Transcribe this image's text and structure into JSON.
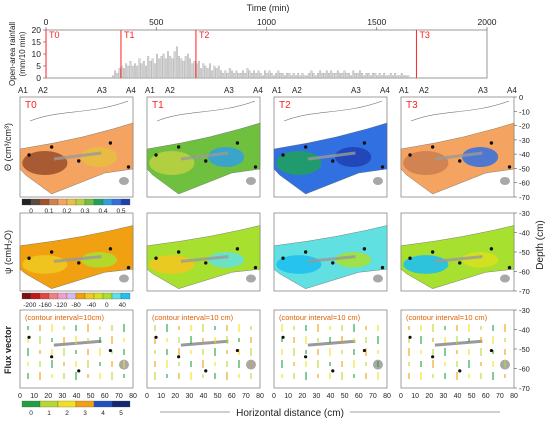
{
  "rainfall_panel": {
    "x_title": "Time (min)",
    "y_title_line1": "Open-area rainfall",
    "y_title_line2": "(mm/10 min)",
    "x_ticks": [
      "0",
      "500",
      "1000",
      "1500",
      "2000"
    ],
    "y_ticks": [
      "0",
      "5",
      "10",
      "15",
      "20"
    ]
  },
  "time_markers": [
    "T0",
    "T1",
    "T2",
    "T3"
  ],
  "panel_titles": [
    "T0",
    "T1",
    "T2",
    "T3"
  ],
  "sensor_labels": [
    "A1",
    "A2",
    "A3",
    "A4"
  ],
  "depth_axis": {
    "title": "Depth (cm)",
    "row1_ticks": [
      "0",
      "-10",
      "-20",
      "-30",
      "-40",
      "-50",
      "-60",
      "-70"
    ],
    "row2_ticks": [
      "-30",
      "-40",
      "-50",
      "-60",
      "-70"
    ],
    "row3_ticks": [
      "-30",
      "-40",
      "-50",
      "-60",
      "-70"
    ]
  },
  "row_labels": {
    "theta": "Θ (cm³/cm³)",
    "psi": "ψ (cmH₂O)",
    "flux": "Flux vector"
  },
  "theta_scale": {
    "ticks": [
      "0",
      "0.1",
      "0.2",
      "0.3",
      "0.4",
      "0.5"
    ],
    "colors": [
      "#222222",
      "#5a4a40",
      "#a0522d",
      "#cd8050",
      "#f4a460",
      "#e8c040",
      "#b8d040",
      "#70c040",
      "#20a060",
      "#30a0e0",
      "#3070e0",
      "#2040b0"
    ]
  },
  "psi_scale": {
    "ticks": [
      "-200",
      "-160",
      "-120",
      "-80",
      "-40",
      "0",
      "40"
    ],
    "colors": [
      "#7a1010",
      "#c01818",
      "#e04848",
      "#f08080",
      "#f0a0c8",
      "#d8b8e8",
      "#f0a010",
      "#f0c820",
      "#d8e020",
      "#a8e030",
      "#60e0e0",
      "#20c0f0"
    ]
  },
  "flux_scale": {
    "ticks": [
      "0",
      "1",
      "2",
      "3",
      "4",
      "5"
    ],
    "colors": [
      "#20a040",
      "#b8d830",
      "#f0e020",
      "#f0a010",
      "#2050c0",
      "#102870"
    ]
  },
  "contour_note": [
    "(contour interval=10cm)",
    "(contour interval=10 cm)",
    "(contour interval=10 cm)",
    "(contour interval=10 cm)"
  ],
  "x_axis": {
    "title": "Horizontal distance (cm)",
    "ticks": [
      "0",
      "10",
      "20",
      "30",
      "40",
      "50",
      "60",
      "70",
      "80"
    ]
  },
  "theme": {
    "marker_color": "#ff2020"
  },
  "chart_data": {
    "type": "bar",
    "title": "",
    "xlabel": "Time (min)",
    "ylabel": "Open-area rainfall (mm/10 min)",
    "xlim": [
      0,
      2000
    ],
    "ylim": [
      0,
      20
    ],
    "bin_width_min": 10,
    "rainfall": [
      [
        300,
        1
      ],
      [
        310,
        3
      ],
      [
        320,
        2
      ],
      [
        330,
        4
      ],
      [
        340,
        5
      ],
      [
        350,
        4
      ],
      [
        360,
        6
      ],
      [
        370,
        5
      ],
      [
        380,
        7
      ],
      [
        390,
        5
      ],
      [
        400,
        6
      ],
      [
        410,
        5
      ],
      [
        420,
        8
      ],
      [
        430,
        6
      ],
      [
        440,
        7
      ],
      [
        450,
        5
      ],
      [
        460,
        9
      ],
      [
        470,
        7
      ],
      [
        480,
        8
      ],
      [
        490,
        6
      ],
      [
        500,
        10
      ],
      [
        510,
        8
      ],
      [
        520,
        9
      ],
      [
        530,
        10
      ],
      [
        540,
        8
      ],
      [
        550,
        11
      ],
      [
        560,
        9
      ],
      [
        570,
        8
      ],
      [
        580,
        11
      ],
      [
        590,
        13
      ],
      [
        600,
        9
      ],
      [
        610,
        8
      ],
      [
        620,
        7
      ],
      [
        630,
        9
      ],
      [
        640,
        10
      ],
      [
        650,
        8
      ],
      [
        660,
        6
      ],
      [
        670,
        7
      ],
      [
        680,
        6
      ],
      [
        690,
        7
      ],
      [
        700,
        4
      ],
      [
        710,
        6
      ],
      [
        720,
        5
      ],
      [
        730,
        4
      ],
      [
        740,
        6
      ],
      [
        750,
        3
      ],
      [
        760,
        5
      ],
      [
        770,
        4
      ],
      [
        780,
        5
      ],
      [
        790,
        3
      ],
      [
        800,
        2
      ],
      [
        810,
        3
      ],
      [
        820,
        2
      ],
      [
        830,
        4
      ],
      [
        840,
        3
      ],
      [
        850,
        2
      ],
      [
        860,
        3
      ],
      [
        870,
        2
      ],
      [
        880,
        2
      ],
      [
        890,
        3
      ],
      [
        900,
        2
      ],
      [
        910,
        4
      ],
      [
        920,
        3
      ],
      [
        930,
        2
      ],
      [
        940,
        3
      ],
      [
        950,
        2
      ],
      [
        960,
        3
      ],
      [
        970,
        2
      ],
      [
        980,
        1
      ],
      [
        990,
        3
      ],
      [
        1000,
        2
      ],
      [
        1010,
        3
      ],
      [
        1020,
        2
      ],
      [
        1030,
        1
      ],
      [
        1040,
        2
      ],
      [
        1050,
        3
      ],
      [
        1060,
        2
      ],
      [
        1070,
        2
      ],
      [
        1080,
        1
      ],
      [
        1090,
        2
      ],
      [
        1100,
        2
      ],
      [
        1110,
        1
      ],
      [
        1120,
        2
      ],
      [
        1130,
        1
      ],
      [
        1140,
        2
      ],
      [
        1150,
        1
      ],
      [
        1160,
        2
      ],
      [
        1170,
        1
      ],
      [
        1180,
        1
      ],
      [
        1190,
        2
      ],
      [
        1200,
        3
      ],
      [
        1210,
        2
      ],
      [
        1220,
        1
      ],
      [
        1230,
        2
      ],
      [
        1240,
        3
      ],
      [
        1250,
        2
      ],
      [
        1260,
        2
      ],
      [
        1270,
        3
      ],
      [
        1280,
        2
      ],
      [
        1290,
        3
      ],
      [
        1300,
        2
      ],
      [
        1310,
        2
      ],
      [
        1320,
        3
      ],
      [
        1330,
        2
      ],
      [
        1340,
        2
      ],
      [
        1350,
        3
      ],
      [
        1360,
        2
      ],
      [
        1370,
        2
      ],
      [
        1380,
        1
      ],
      [
        1390,
        3
      ],
      [
        1400,
        2
      ],
      [
        1410,
        2
      ],
      [
        1420,
        3
      ],
      [
        1430,
        2
      ],
      [
        1440,
        1
      ],
      [
        1450,
        2
      ],
      [
        1460,
        2
      ],
      [
        1470,
        1
      ],
      [
        1480,
        2
      ],
      [
        1490,
        2
      ],
      [
        1500,
        1
      ],
      [
        1510,
        2
      ],
      [
        1520,
        1
      ],
      [
        1530,
        2
      ],
      [
        1540,
        1
      ],
      [
        1550,
        1
      ],
      [
        1560,
        2
      ],
      [
        1570,
        1
      ],
      [
        1580,
        2
      ],
      [
        1590,
        1
      ],
      [
        1600,
        1
      ],
      [
        1610,
        2
      ],
      [
        1620,
        1
      ],
      [
        1630,
        1
      ],
      [
        1640,
        1
      ]
    ],
    "markers": [
      {
        "label": "T0",
        "x": 0
      },
      {
        "label": "T1",
        "x": 340
      },
      {
        "label": "T2",
        "x": 680
      },
      {
        "label": "T3",
        "x": 1680
      }
    ]
  }
}
